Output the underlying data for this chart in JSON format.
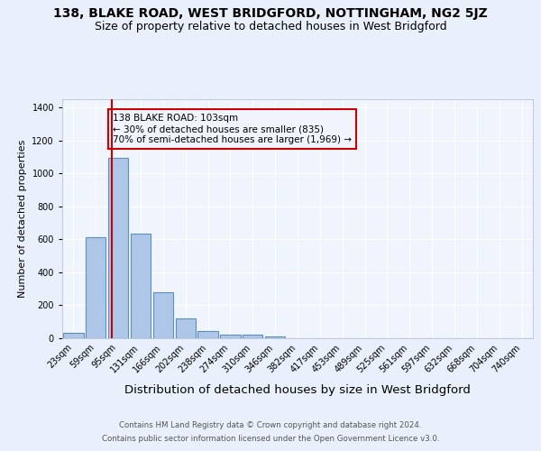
{
  "title": "138, BLAKE ROAD, WEST BRIDGFORD, NOTTINGHAM, NG2 5JZ",
  "subtitle": "Size of property relative to detached houses in West Bridgford",
  "xlabel": "Distribution of detached houses by size in West Bridgford",
  "ylabel": "Number of detached properties",
  "footnote1": "Contains HM Land Registry data © Crown copyright and database right 2024.",
  "footnote2": "Contains public sector information licensed under the Open Government Licence v3.0.",
  "bin_labels": [
    "23sqm",
    "59sqm",
    "95sqm",
    "131sqm",
    "166sqm",
    "202sqm",
    "238sqm",
    "274sqm",
    "310sqm",
    "346sqm",
    "382sqm",
    "417sqm",
    "453sqm",
    "489sqm",
    "525sqm",
    "561sqm",
    "597sqm",
    "632sqm",
    "668sqm",
    "704sqm",
    "740sqm"
  ],
  "bar_heights": [
    32,
    615,
    1093,
    635,
    280,
    118,
    42,
    22,
    22,
    13,
    0,
    0,
    0,
    0,
    0,
    0,
    0,
    0,
    0,
    0,
    0
  ],
  "bar_color": "#aec6e8",
  "bar_edgecolor": "#5a8fc2",
  "annotation_box_text": "138 BLAKE ROAD: 103sqm\n← 30% of detached houses are smaller (835)\n70% of semi-detached houses are larger (1,969) →",
  "annotation_box_edgecolor": "#cc0000",
  "vline_x": 1.7,
  "vline_color": "#cc0000",
  "ylim": [
    0,
    1450
  ],
  "yticks": [
    0,
    200,
    400,
    600,
    800,
    1000,
    1200,
    1400
  ],
  "bg_color": "#eaf0fb",
  "plot_bg_color": "#f0f4fd",
  "grid_color": "#ffffff",
  "title_fontsize": 10,
  "subtitle_fontsize": 9,
  "xlabel_fontsize": 9.5,
  "ylabel_fontsize": 8,
  "tick_fontsize": 7,
  "ann_fontsize": 7.5
}
